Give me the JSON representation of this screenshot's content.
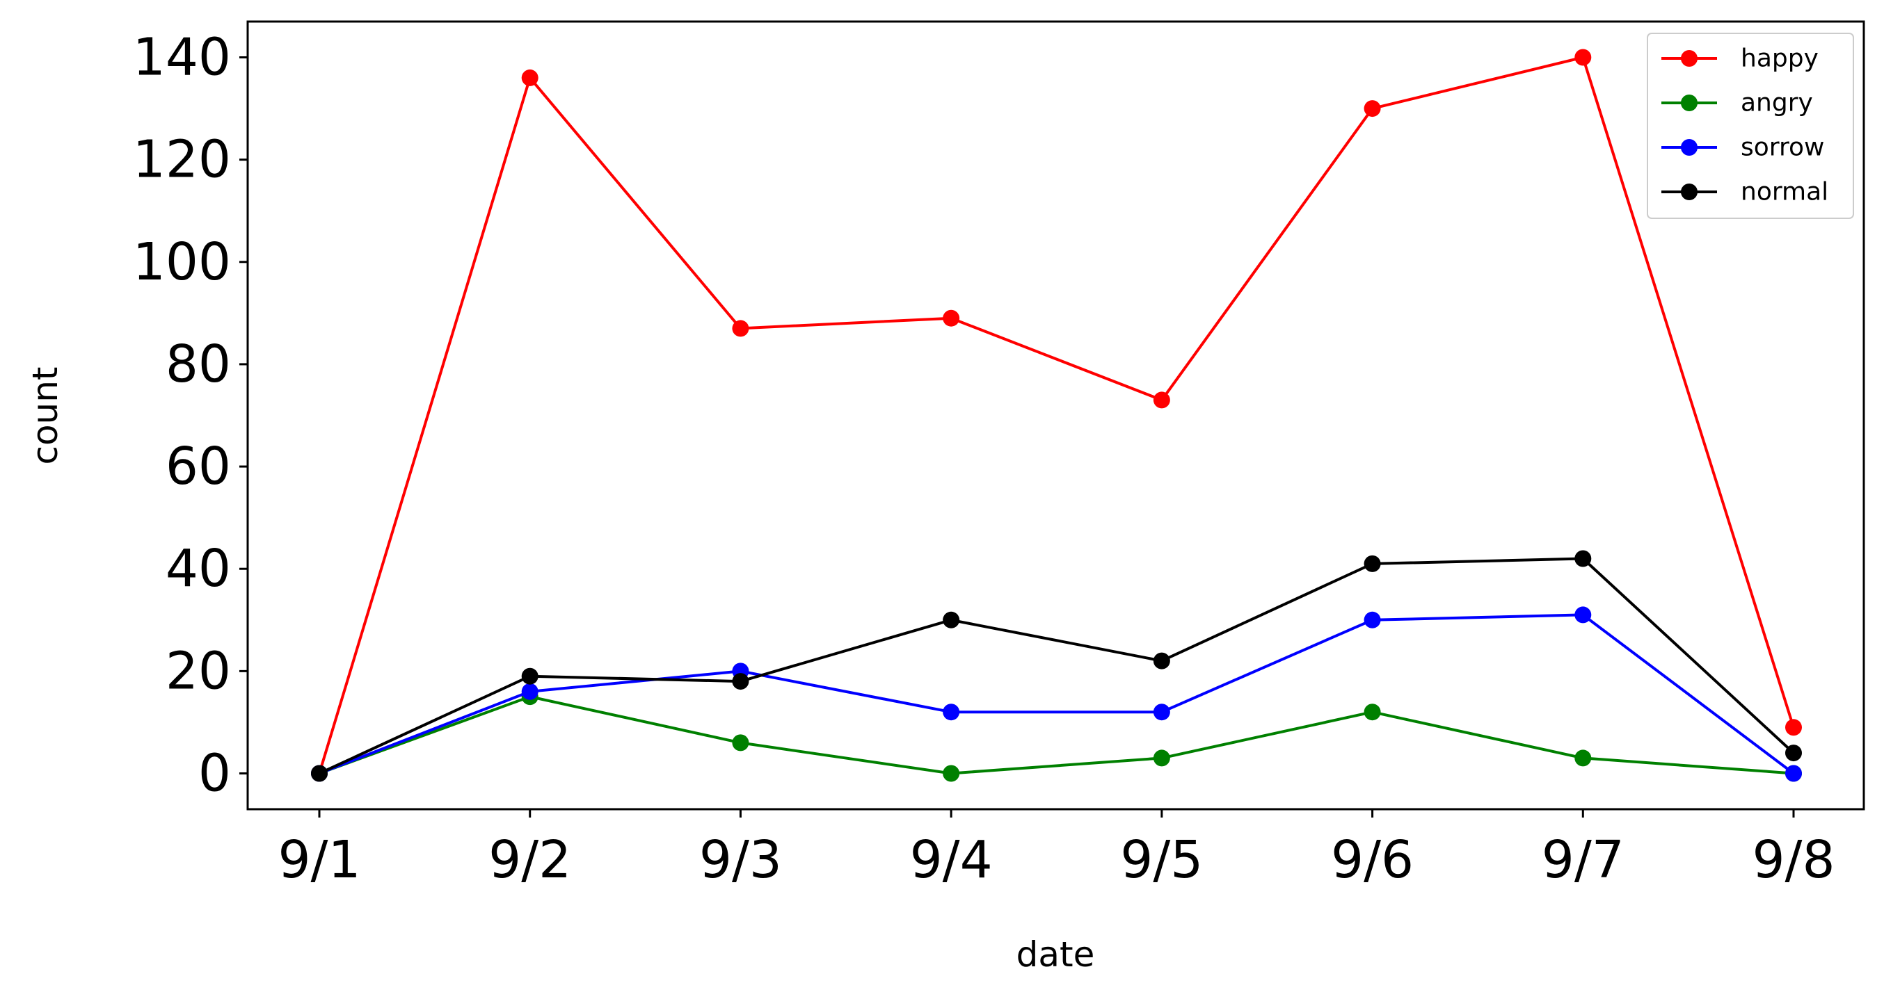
{
  "chart_data": {
    "type": "line",
    "xlabel": "date",
    "ylabel": "count",
    "x": [
      "9/1",
      "9/2",
      "9/3",
      "9/4",
      "9/5",
      "9/6",
      "9/7",
      "9/8"
    ],
    "ylim": [
      -7,
      147
    ],
    "yticks": [
      0,
      20,
      40,
      60,
      80,
      100,
      120,
      140
    ],
    "grid": false,
    "legend_position": "top-right",
    "series": [
      {
        "name": "happy",
        "color": "#ff0000",
        "values": [
          0,
          136,
          87,
          89,
          73,
          130,
          140,
          9
        ]
      },
      {
        "name": "angry",
        "color": "#008000",
        "values": [
          0,
          15,
          6,
          0,
          3,
          12,
          3,
          0
        ]
      },
      {
        "name": "sorrow",
        "color": "#0000ff",
        "values": [
          0,
          16,
          20,
          12,
          12,
          30,
          31,
          0
        ]
      },
      {
        "name": "normal",
        "color": "#000000",
        "values": [
          0,
          19,
          18,
          30,
          22,
          41,
          42,
          4
        ]
      }
    ]
  }
}
